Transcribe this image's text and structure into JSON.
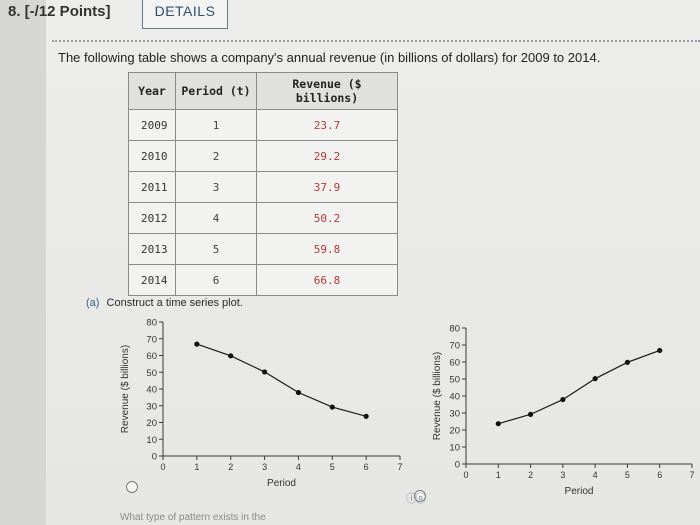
{
  "question": {
    "number_label": "8. [-/12 Points]",
    "details_button": "DETAILS",
    "prompt": "The following table shows a company's annual revenue (in billions of dollars) for 2009 to 2014."
  },
  "table": {
    "headers": [
      "Year",
      "Period (t)",
      "Revenue ($ billions)"
    ],
    "rows": [
      {
        "year": "2009",
        "period": "1",
        "revenue": "23.7"
      },
      {
        "year": "2010",
        "period": "2",
        "revenue": "29.2"
      },
      {
        "year": "2011",
        "period": "3",
        "revenue": "37.9"
      },
      {
        "year": "2012",
        "period": "4",
        "revenue": "50.2"
      },
      {
        "year": "2013",
        "period": "5",
        "revenue": "59.8"
      },
      {
        "year": "2014",
        "period": "6",
        "revenue": "66.8"
      }
    ]
  },
  "part_a": {
    "label": "(a)",
    "text": "Construct a time series plot."
  },
  "bottom_text": "What type of pattern exists in the",
  "colors": {
    "revenue_text": "#b23a3a",
    "link_blue": "#3a5f8a",
    "line": "#1a1a1a"
  },
  "chart_data": [
    {
      "type": "line",
      "x": [
        1,
        2,
        3,
        4,
        5,
        6
      ],
      "values": [
        66.8,
        59.8,
        50.2,
        37.9,
        29.2,
        23.7
      ],
      "xlabel": "Period",
      "ylabel": "Revenue ($ billions)",
      "xlim": [
        0,
        7
      ],
      "ylim": [
        0,
        80
      ],
      "xticks": [
        "0",
        "1",
        "2",
        "3",
        "4",
        "5",
        "6",
        "7"
      ],
      "yticks": [
        "0",
        "10",
        "20",
        "30",
        "40",
        "50",
        "60",
        "70",
        "80"
      ],
      "grid": false
    },
    {
      "type": "line",
      "x": [
        1,
        2,
        3,
        4,
        5,
        6
      ],
      "values": [
        23.7,
        29.2,
        37.9,
        50.2,
        59.8,
        66.8
      ],
      "xlabel": "Period",
      "ylabel": "Revenue ($ billions)",
      "xlim": [
        0,
        7
      ],
      "ylim": [
        0,
        80
      ],
      "xticks": [
        "0",
        "1",
        "2",
        "3",
        "4",
        "5",
        "6",
        "7"
      ],
      "yticks": [
        "0",
        "10",
        "20",
        "30",
        "40",
        "50",
        "60",
        "70",
        "80"
      ],
      "grid": false
    }
  ]
}
